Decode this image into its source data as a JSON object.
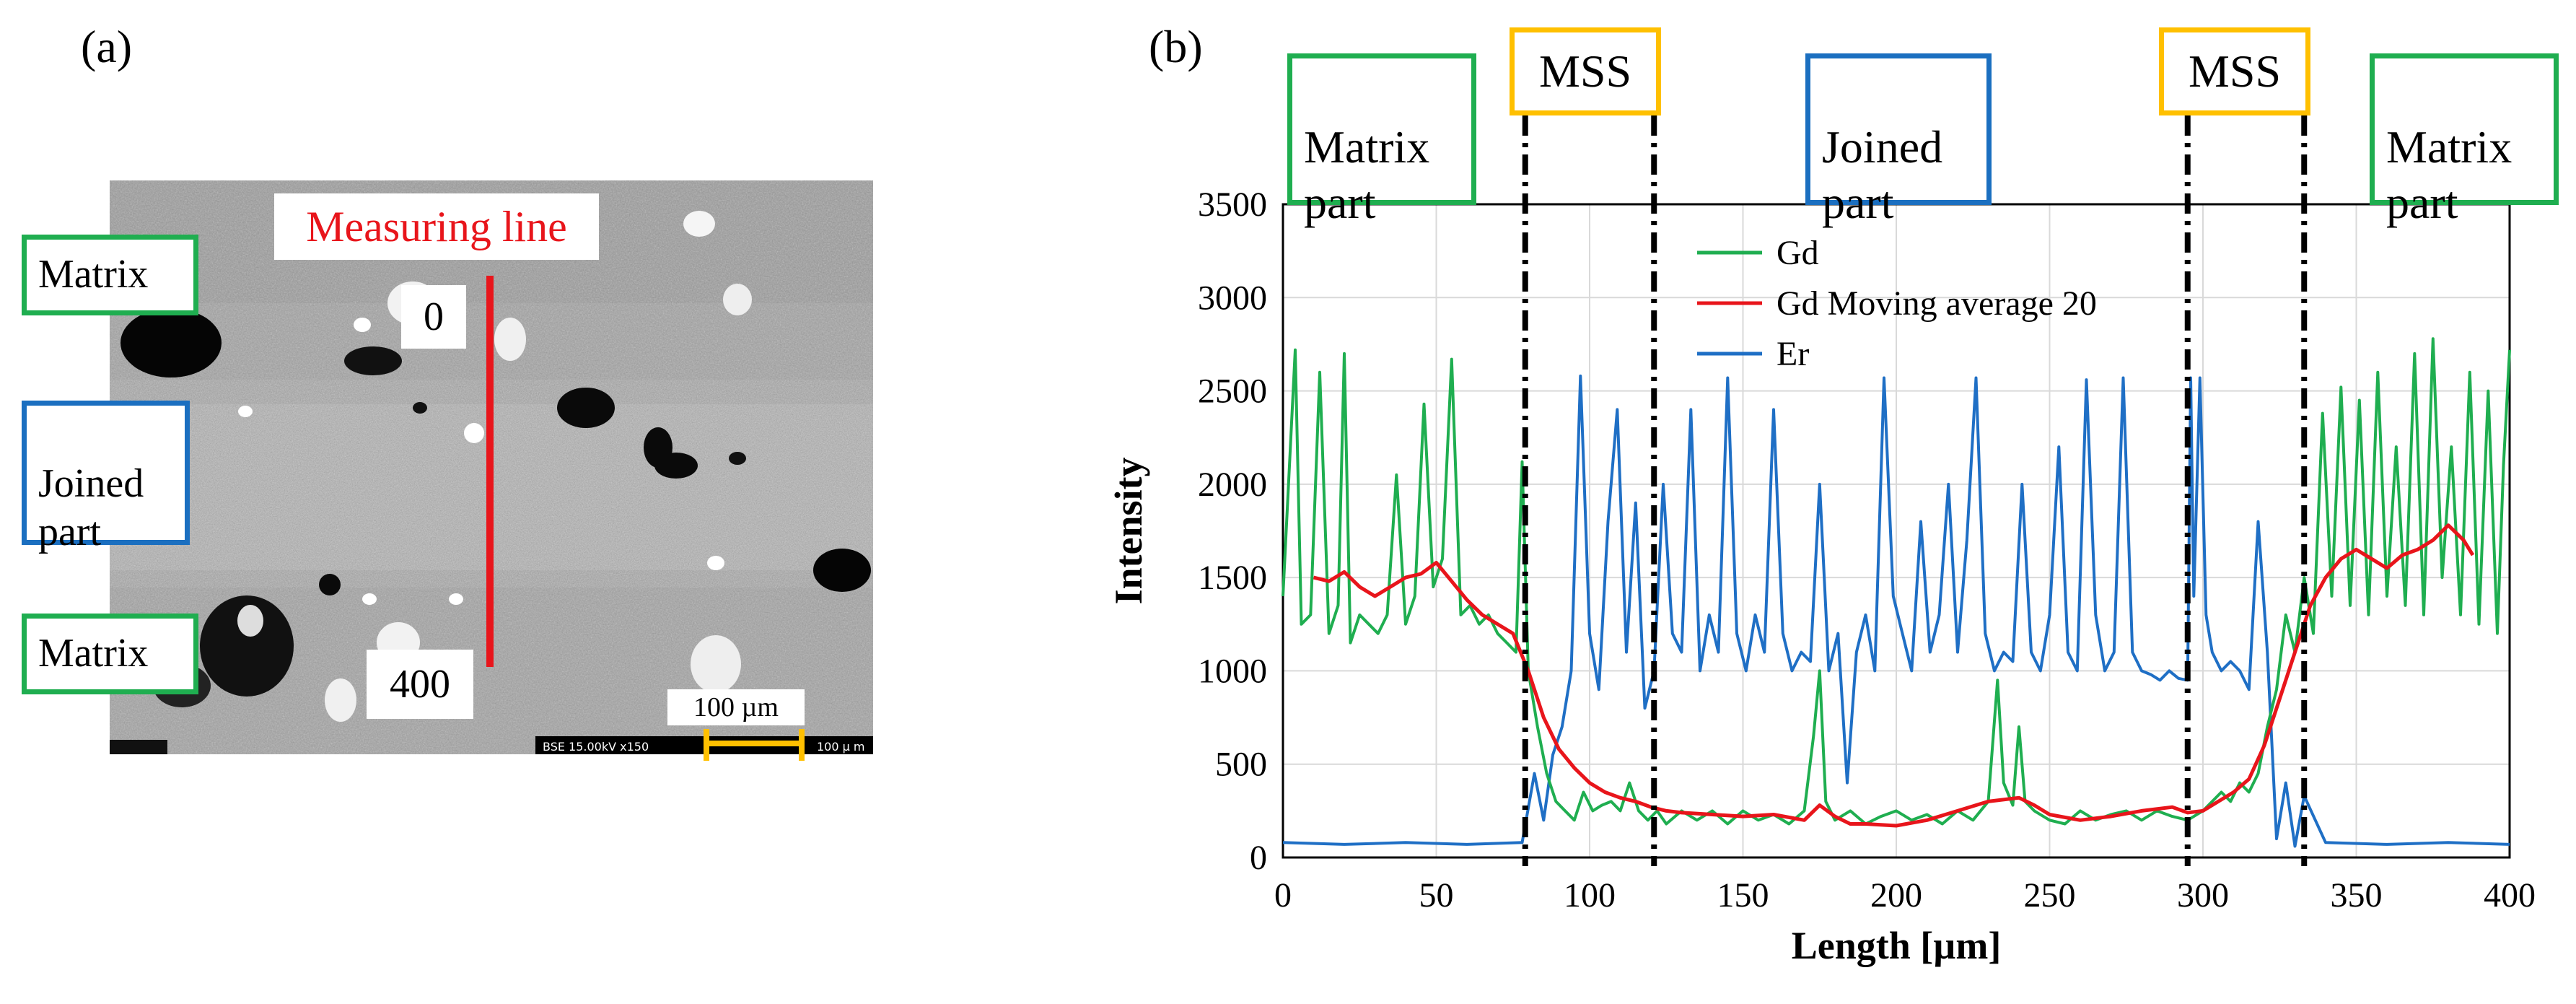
{
  "panel_a": {
    "label": "(a)",
    "tags": {
      "matrix_top": "Matrix",
      "joined": "Joined\npart",
      "matrix_bottom": "Matrix"
    },
    "measuring_line": "Measuring line",
    "start_mark": "0",
    "end_mark": "400",
    "scale_label": "100 µm",
    "micrograph_footer": "BSE  15.00kV  x150",
    "micrograph_scale": "100 µ m",
    "colors": {
      "measuring_line": "#e8151b",
      "scale_bar": "#ffc000"
    }
  },
  "panel_b": {
    "label": "(b)",
    "regions": {
      "matrix_left": "Matrix\npart",
      "mss_left": "MSS",
      "joined": "Joined\npart",
      "mss_right": "MSS",
      "matrix_right": "Matrix\npart"
    }
  },
  "chart_data": {
    "type": "line",
    "xlabel": "Length [µm]",
    "ylabel": "Intensity",
    "xlim": [
      0,
      400
    ],
    "ylim": [
      0,
      3500
    ],
    "xticks": [
      0,
      50,
      100,
      150,
      200,
      250,
      300,
      350,
      400
    ],
    "yticks": [
      0,
      500,
      1000,
      1500,
      2000,
      2500,
      3000,
      3500
    ],
    "grid": true,
    "legend_position": "top-center",
    "boundaries": [
      79,
      121,
      295,
      333
    ],
    "series": [
      {
        "name": "Gd",
        "color": "#1fae50",
        "x": [
          0,
          4,
          6,
          9,
          12,
          15,
          18,
          20,
          22,
          25,
          28,
          31,
          34,
          37,
          40,
          43,
          46,
          49,
          52,
          55,
          58,
          61,
          64,
          67,
          70,
          73,
          76,
          78,
          80,
          83,
          86,
          89,
          92,
          95,
          98,
          101,
          104,
          107,
          110,
          113,
          116,
          119,
          122,
          125,
          130,
          135,
          140,
          145,
          150,
          155,
          160,
          165,
          170,
          173,
          175,
          177,
          180,
          185,
          190,
          195,
          200,
          205,
          210,
          215,
          220,
          225,
          230,
          233,
          235,
          238,
          240,
          242,
          245,
          250,
          255,
          260,
          265,
          270,
          275,
          280,
          285,
          290,
          295,
          300,
          303,
          306,
          309,
          312,
          315,
          318,
          321,
          324,
          327,
          330,
          333,
          336,
          339,
          342,
          345,
          348,
          351,
          354,
          357,
          360,
          363,
          366,
          369,
          372,
          375,
          378,
          381,
          384,
          387,
          390,
          393,
          396,
          398,
          400
        ],
        "values": [
          1400,
          2720,
          1250,
          1300,
          2600,
          1200,
          1350,
          2700,
          1150,
          1300,
          1250,
          1200,
          1300,
          2050,
          1250,
          1400,
          2430,
          1450,
          1600,
          2670,
          1300,
          1350,
          1250,
          1300,
          1200,
          1150,
          1100,
          2120,
          1000,
          700,
          450,
          300,
          250,
          200,
          350,
          250,
          280,
          300,
          250,
          400,
          250,
          200,
          250,
          180,
          250,
          200,
          250,
          180,
          250,
          200,
          230,
          180,
          250,
          650,
          1000,
          300,
          200,
          250,
          180,
          220,
          250,
          200,
          230,
          180,
          250,
          200,
          300,
          950,
          400,
          280,
          700,
          300,
          250,
          200,
          180,
          250,
          200,
          230,
          250,
          200,
          250,
          220,
          200,
          250,
          300,
          350,
          300,
          400,
          350,
          450,
          700,
          900,
          1300,
          1100,
          1500,
          1200,
          2380,
          1400,
          2520,
          1350,
          2450,
          1300,
          2600,
          1400,
          2200,
          1350,
          2700,
          1300,
          2780,
          1500,
          2200,
          1300,
          2600,
          1250,
          2500,
          1200,
          2100,
          2720
        ]
      },
      {
        "name": "Gd Moving average 20",
        "color": "#e8151b",
        "x": [
          10,
          15,
          20,
          25,
          30,
          35,
          40,
          45,
          50,
          55,
          60,
          65,
          70,
          75,
          80,
          85,
          90,
          95,
          100,
          105,
          110,
          115,
          120,
          125,
          130,
          140,
          150,
          160,
          170,
          175,
          180,
          185,
          190,
          200,
          210,
          220,
          230,
          240,
          245,
          250,
          260,
          270,
          280,
          290,
          295,
          300,
          305,
          310,
          315,
          320,
          325,
          330,
          335,
          340,
          345,
          350,
          355,
          360,
          365,
          370,
          375,
          380,
          385,
          388
        ],
        "values": [
          1500,
          1480,
          1530,
          1450,
          1400,
          1450,
          1500,
          1520,
          1580,
          1480,
          1380,
          1300,
          1250,
          1200,
          1000,
          750,
          580,
          480,
          400,
          350,
          320,
          300,
          270,
          250,
          240,
          230,
          220,
          230,
          200,
          280,
          220,
          180,
          180,
          170,
          200,
          250,
          300,
          320,
          280,
          230,
          200,
          220,
          250,
          270,
          240,
          250,
          300,
          350,
          420,
          600,
          850,
          1100,
          1350,
          1500,
          1600,
          1650,
          1600,
          1550,
          1620,
          1650,
          1700,
          1780,
          1700,
          1620
        ]
      },
      {
        "name": "Er",
        "color": "#1f6fc5",
        "x": [
          0,
          20,
          40,
          60,
          78,
          82,
          85,
          88,
          91,
          94,
          97,
          100,
          103,
          106,
          109,
          112,
          115,
          118,
          121,
          124,
          127,
          130,
          133,
          136,
          139,
          142,
          145,
          148,
          151,
          154,
          157,
          160,
          163,
          166,
          169,
          172,
          175,
          178,
          181,
          184,
          187,
          190,
          193,
          196,
          199,
          202,
          205,
          208,
          211,
          214,
          217,
          220,
          223,
          226,
          229,
          232,
          235,
          238,
          241,
          244,
          247,
          250,
          253,
          256,
          259,
          262,
          265,
          268,
          271,
          274,
          277,
          280,
          283,
          286,
          289,
          292,
          295,
          296,
          297,
          299,
          301,
          303,
          306,
          309,
          312,
          315,
          318,
          321,
          324,
          327,
          330,
          333,
          340,
          360,
          380,
          400
        ],
        "values": [
          80,
          70,
          80,
          70,
          80,
          450,
          200,
          550,
          700,
          1000,
          2580,
          1200,
          900,
          1800,
          2400,
          1100,
          1900,
          800,
          1000,
          2000,
          1200,
          1100,
          2400,
          1000,
          1300,
          1100,
          2570,
          1200,
          1000,
          1300,
          1100,
          2400,
          1200,
          1000,
          1100,
          1050,
          2000,
          1000,
          1200,
          400,
          1100,
          1300,
          1000,
          2570,
          1400,
          1200,
          1000,
          1800,
          1100,
          1300,
          2000,
          1100,
          1700,
          2570,
          1200,
          1000,
          1100,
          1050,
          2000,
          1100,
          1000,
          1300,
          2200,
          1100,
          1000,
          2560,
          1300,
          1000,
          1100,
          2570,
          1100,
          1000,
          980,
          950,
          1000,
          960,
          950,
          2570,
          1400,
          2570,
          1300,
          1100,
          1000,
          1050,
          1000,
          900,
          1800,
          1100,
          100,
          400,
          60,
          330,
          80,
          70,
          80,
          70
        ]
      }
    ]
  }
}
